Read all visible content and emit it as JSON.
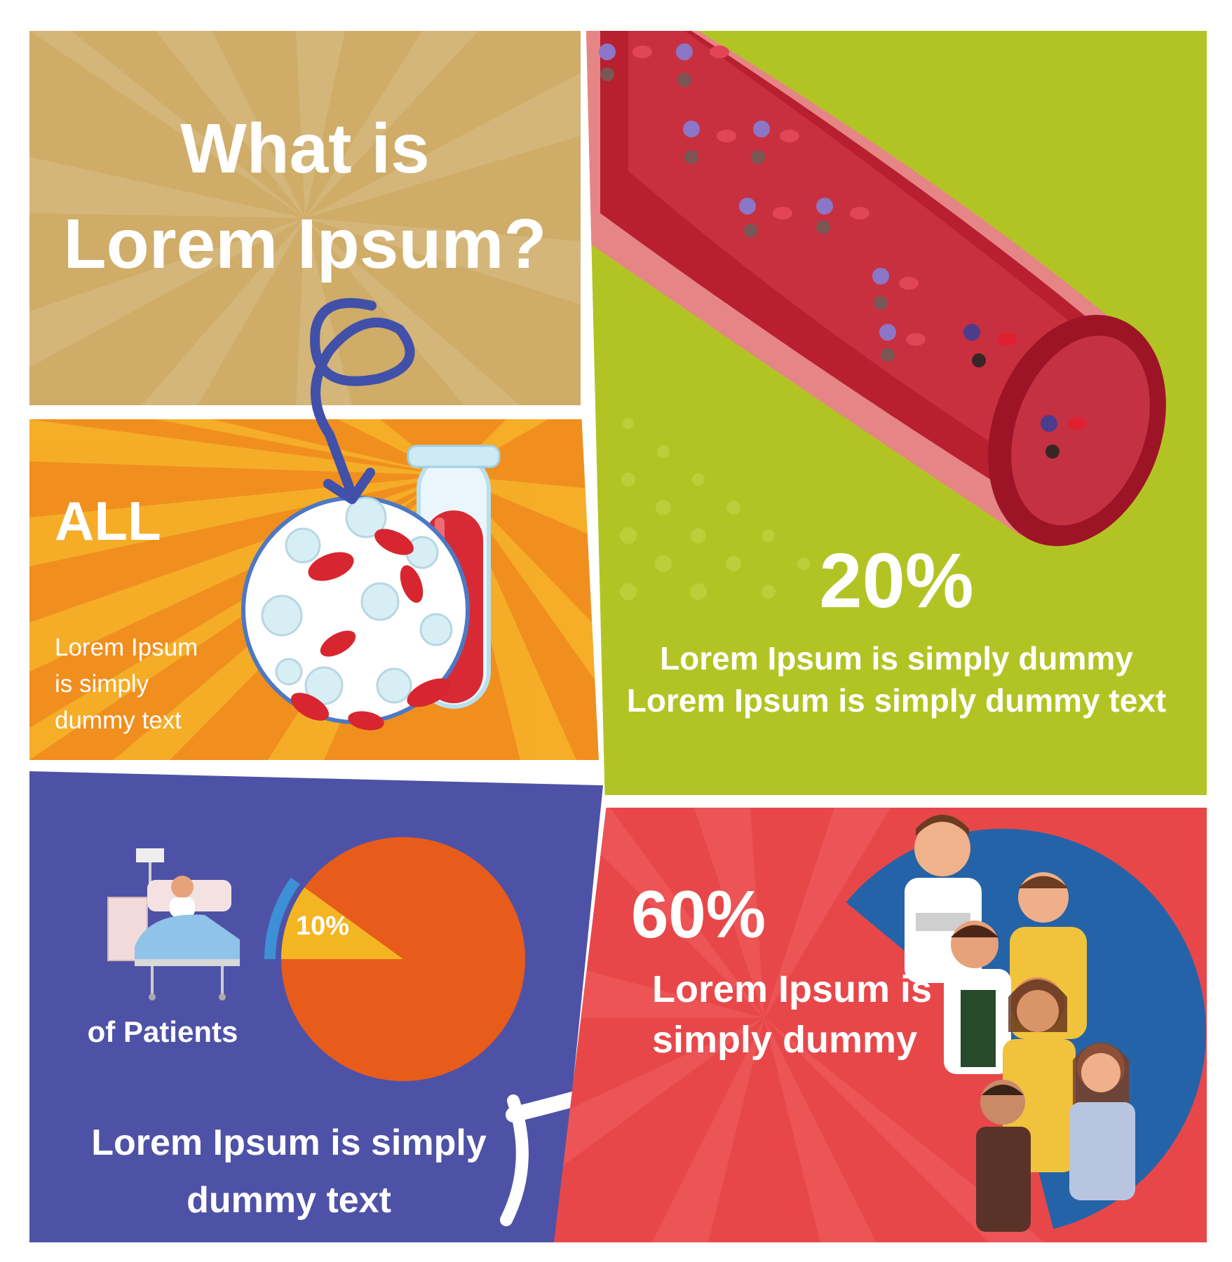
{
  "title": {
    "line1": "What is",
    "line2": "Lorem Ipsum?"
  },
  "all_panel": {
    "heading": "ALL",
    "body_lines": [
      "Lorem Ipsum",
      "is simply",
      "dummy text"
    ]
  },
  "vein_panel": {
    "stat": "20%",
    "line1": "Lorem Ipsum is simply dummy",
    "line2": "Lorem Ipsum is simply dummy text"
  },
  "patients_panel": {
    "pie_label": "10%",
    "pie_fraction": 0.1,
    "caption": "of Patients",
    "line1": "Lorem Ipsum is simply",
    "line2": "dummy text"
  },
  "sixty_panel": {
    "stat": "60%",
    "line1": "Lorem Ipsum is",
    "line2": "simply dummy",
    "donut_fraction": 0.6
  },
  "colors": {
    "tan": "#cfac67",
    "orange": "#f08f1e",
    "lime": "#b2c424",
    "indigo": "#4e52a6",
    "red": "#e8474a",
    "blood": "#c92b3a",
    "pie_main": "#e85c1b",
    "pie_slice": "#f4b522",
    "pie_ring": "#3d8fd6",
    "arrow": "#4150a8"
  },
  "icons": [
    "curly-arrow-icon",
    "test-tube-icon",
    "blood-cell-magnifier-icon",
    "vein-icon",
    "hospital-bed-icon",
    "white-arrow-icon",
    "people-group-icon"
  ]
}
